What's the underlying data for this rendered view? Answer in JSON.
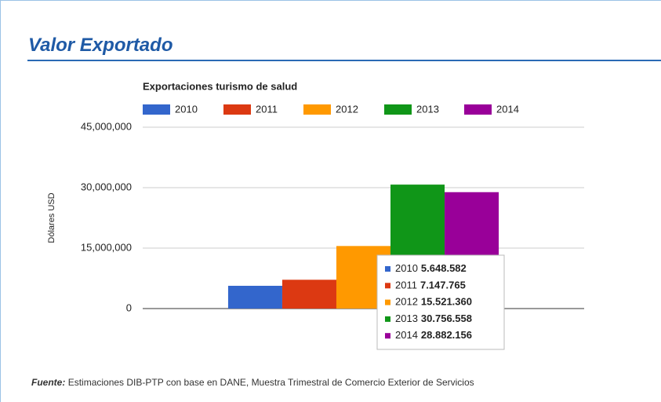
{
  "header": {
    "title": "Valor Exportado"
  },
  "chart_data": {
    "type": "bar",
    "title": "Exportaciones turismo de salud",
    "y_label": "Dólares USD",
    "categories": [
      null
    ],
    "series": [
      {
        "name": "2010",
        "color": "#3366cc",
        "values": [
          5648582
        ],
        "value_labels": [
          "5.648.582"
        ]
      },
      {
        "name": "2011",
        "color": "#dc3912",
        "values": [
          7147765
        ],
        "value_labels": [
          "7.147.765"
        ]
      },
      {
        "name": "2012",
        "color": "#ff9900",
        "values": [
          15521360
        ],
        "value_labels": [
          "15.521.360"
        ]
      },
      {
        "name": "2013",
        "color": "#109618",
        "values": [
          30756558
        ],
        "value_labels": [
          "30.756.558"
        ]
      },
      {
        "name": "2014",
        "color": "#990099",
        "values": [
          28882156
        ],
        "value_labels": [
          "28.882.156"
        ]
      }
    ],
    "ylim": [
      0,
      45000000
    ],
    "yticks": [
      0,
      {
        "value": 15000000,
        "label": "15,000,000"
      },
      {
        "value": 30000000,
        "label": "30,000,000"
      },
      {
        "value": 45000000,
        "label": "45,000,000"
      }
    ],
    "grid": true,
    "legend": "top"
  },
  "footer": {
    "lead": "Fuente:",
    "text": "Estimaciones DIB-PTP con base en DANE, Muestra Trimestral de Comercio Exterior de Servicios"
  }
}
